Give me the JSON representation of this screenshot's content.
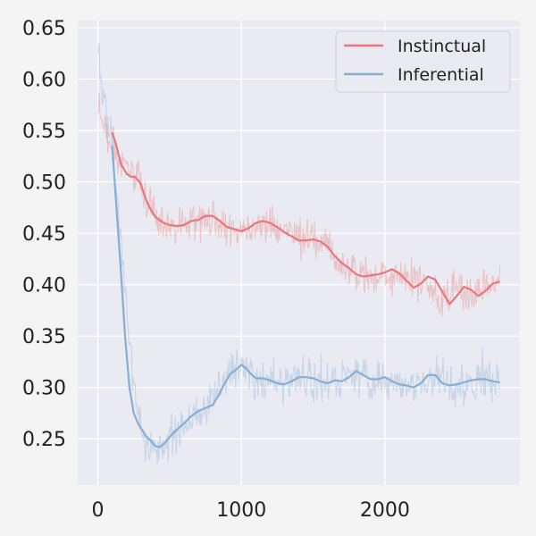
{
  "chart_data": {
    "type": "line",
    "title": "",
    "xlabel": "",
    "ylabel": "",
    "xlim": [
      -140,
      2940
    ],
    "ylim": [
      0.205,
      0.657
    ],
    "xticks": [
      0,
      1000,
      2000
    ],
    "yticks": [
      0.25,
      0.3,
      0.35,
      0.4,
      0.45,
      0.5,
      0.55,
      0.6,
      0.65
    ],
    "xtick_labels": [
      "0",
      "1000",
      "2000"
    ],
    "ytick_labels": [
      "0.25",
      "0.30",
      "0.35",
      "0.40",
      "0.45",
      "0.50",
      "0.55",
      "0.60",
      "0.65"
    ],
    "grid": true,
    "legend_position": "top-right",
    "background_color": "#eaeaf2",
    "series": [
      {
        "name": "Instinctual",
        "color": "#e8777b",
        "raw_x_range": [
          0,
          2800
        ],
        "raw_noise": 0.012,
        "raw_anchors": [
          [
            0,
            0.575
          ],
          [
            50,
            0.56
          ],
          [
            100,
            0.535
          ],
          [
            150,
            0.52
          ],
          [
            200,
            0.515
          ],
          [
            250,
            0.51
          ],
          [
            300,
            0.495
          ],
          [
            350,
            0.475
          ],
          [
            400,
            0.465
          ],
          [
            450,
            0.46
          ],
          [
            500,
            0.458
          ],
          [
            600,
            0.458
          ],
          [
            700,
            0.465
          ],
          [
            800,
            0.465
          ],
          [
            850,
            0.462
          ],
          [
            900,
            0.455
          ],
          [
            1000,
            0.452
          ],
          [
            1050,
            0.455
          ],
          [
            1100,
            0.46
          ],
          [
            1200,
            0.458
          ],
          [
            1300,
            0.452
          ],
          [
            1400,
            0.445
          ],
          [
            1500,
            0.445
          ],
          [
            1600,
            0.435
          ],
          [
            1700,
            0.42
          ],
          [
            1800,
            0.41
          ],
          [
            1900,
            0.408
          ],
          [
            2000,
            0.41
          ],
          [
            2100,
            0.413
          ],
          [
            2200,
            0.4
          ],
          [
            2300,
            0.405
          ],
          [
            2400,
            0.385
          ],
          [
            2500,
            0.395
          ],
          [
            2600,
            0.39
          ],
          [
            2700,
            0.398
          ],
          [
            2800,
            0.403
          ]
        ],
        "smooth": {
          "x": [
            100,
            130,
            160,
            200,
            230,
            260,
            300,
            330,
            360,
            400,
            430,
            460,
            500,
            550,
            600,
            650,
            700,
            750,
            800,
            850,
            900,
            950,
            1000,
            1050,
            1100,
            1150,
            1200,
            1250,
            1300,
            1350,
            1400,
            1450,
            1500,
            1550,
            1600,
            1650,
            1700,
            1750,
            1800,
            1850,
            1900,
            1950,
            2000,
            2050,
            2100,
            2150,
            2200,
            2250,
            2300,
            2350,
            2400,
            2450,
            2500,
            2550,
            2600,
            2650,
            2700,
            2750,
            2800
          ],
          "y": [
            0.548,
            0.535,
            0.518,
            0.508,
            0.505,
            0.505,
            0.498,
            0.485,
            0.475,
            0.466,
            0.463,
            0.46,
            0.458,
            0.457,
            0.458,
            0.462,
            0.463,
            0.467,
            0.467,
            0.462,
            0.456,
            0.454,
            0.452,
            0.455,
            0.46,
            0.462,
            0.46,
            0.456,
            0.451,
            0.447,
            0.443,
            0.443,
            0.444,
            0.442,
            0.437,
            0.428,
            0.421,
            0.416,
            0.41,
            0.408,
            0.409,
            0.41,
            0.412,
            0.415,
            0.411,
            0.404,
            0.397,
            0.401,
            0.408,
            0.405,
            0.393,
            0.381,
            0.389,
            0.398,
            0.395,
            0.389,
            0.394,
            0.401,
            0.403
          ]
        }
      },
      {
        "name": "Inferential",
        "color": "#86aed4",
        "raw_x_range": [
          0,
          2800
        ],
        "raw_noise": 0.013,
        "raw_anchors": [
          [
            0,
            0.63
          ],
          [
            30,
            0.59
          ],
          [
            60,
            0.56
          ],
          [
            100,
            0.53
          ],
          [
            130,
            0.48
          ],
          [
            160,
            0.44
          ],
          [
            190,
            0.39
          ],
          [
            220,
            0.34
          ],
          [
            250,
            0.3
          ],
          [
            280,
            0.275
          ],
          [
            310,
            0.26
          ],
          [
            340,
            0.25
          ],
          [
            370,
            0.243
          ],
          [
            400,
            0.238
          ],
          [
            450,
            0.24
          ],
          [
            500,
            0.25
          ],
          [
            550,
            0.258
          ],
          [
            600,
            0.265
          ],
          [
            650,
            0.27
          ],
          [
            700,
            0.275
          ],
          [
            750,
            0.283
          ],
          [
            800,
            0.29
          ],
          [
            850,
            0.3
          ],
          [
            900,
            0.31
          ],
          [
            950,
            0.32
          ],
          [
            1000,
            0.325
          ],
          [
            1050,
            0.318
          ],
          [
            1100,
            0.31
          ],
          [
            1200,
            0.308
          ],
          [
            1300,
            0.305
          ],
          [
            1400,
            0.31
          ],
          [
            1500,
            0.305
          ],
          [
            1600,
            0.305
          ],
          [
            1700,
            0.31
          ],
          [
            1800,
            0.315
          ],
          [
            1900,
            0.307
          ],
          [
            2000,
            0.308
          ],
          [
            2100,
            0.305
          ],
          [
            2200,
            0.3
          ],
          [
            2300,
            0.31
          ],
          [
            2400,
            0.305
          ],
          [
            2500,
            0.302
          ],
          [
            2600,
            0.305
          ],
          [
            2700,
            0.31
          ],
          [
            2800,
            0.305
          ]
        ],
        "smooth": {
          "x": [
            100,
            130,
            160,
            190,
            220,
            250,
            280,
            310,
            340,
            370,
            400,
            430,
            460,
            490,
            520,
            560,
            600,
            650,
            700,
            750,
            800,
            840,
            880,
            920,
            960,
            1000,
            1030,
            1060,
            1100,
            1150,
            1200,
            1250,
            1300,
            1350,
            1400,
            1450,
            1500,
            1550,
            1600,
            1650,
            1700,
            1750,
            1800,
            1850,
            1900,
            1950,
            2000,
            2050,
            2100,
            2150,
            2200,
            2250,
            2300,
            2350,
            2400,
            2450,
            2500,
            2550,
            2600,
            2650,
            2700,
            2750,
            2800
          ],
          "y": [
            0.535,
            0.475,
            0.415,
            0.35,
            0.3,
            0.275,
            0.265,
            0.258,
            0.252,
            0.248,
            0.243,
            0.242,
            0.245,
            0.25,
            0.255,
            0.26,
            0.265,
            0.272,
            0.277,
            0.28,
            0.283,
            0.292,
            0.303,
            0.313,
            0.317,
            0.322,
            0.319,
            0.314,
            0.309,
            0.309,
            0.307,
            0.304,
            0.303,
            0.306,
            0.31,
            0.31,
            0.309,
            0.306,
            0.304,
            0.307,
            0.306,
            0.31,
            0.316,
            0.312,
            0.308,
            0.308,
            0.31,
            0.306,
            0.303,
            0.302,
            0.3,
            0.304,
            0.312,
            0.312,
            0.304,
            0.302,
            0.303,
            0.305,
            0.307,
            0.308,
            0.308,
            0.306,
            0.305
          ]
        }
      }
    ]
  }
}
